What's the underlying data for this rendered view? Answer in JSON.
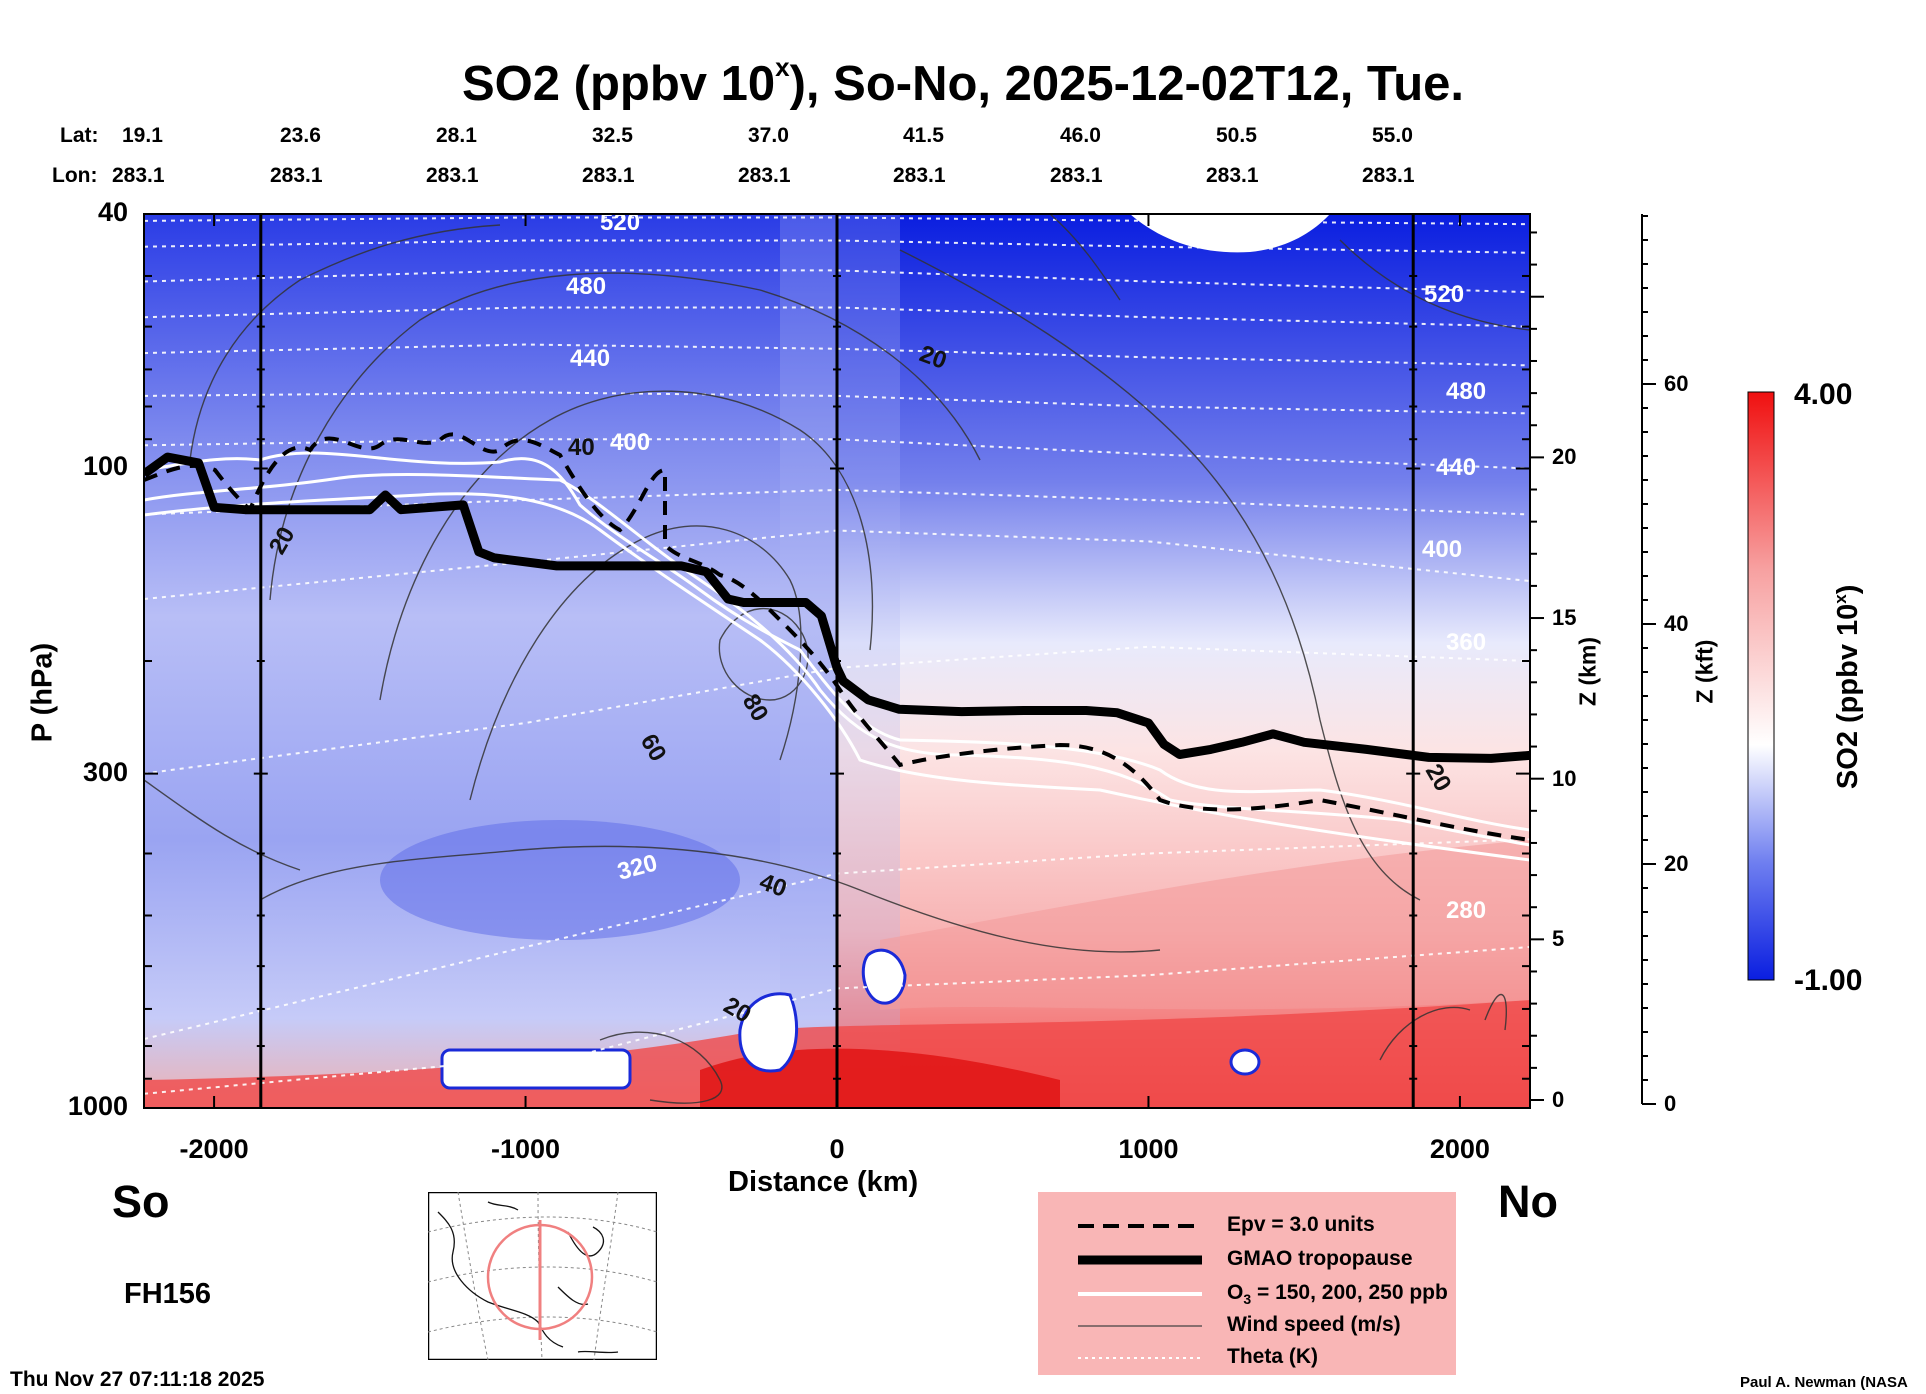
{
  "header": {
    "title_main": "SO2 (ppbv 10",
    "title_sup": "x",
    "title_rest": "), So-No, 2025-12-02T12, Tue.",
    "lat_label": "Lat:",
    "lon_label": "Lon:",
    "lats": [
      "19.1",
      "23.6",
      "28.1",
      "32.5",
      "37.0",
      "41.5",
      "46.0",
      "50.5",
      "55.0"
    ],
    "lons": [
      "283.1",
      "283.1",
      "283.1",
      "283.1",
      "283.1",
      "283.1",
      "283.1",
      "283.1",
      "283.1"
    ]
  },
  "labels": {
    "south": "So",
    "north": "No",
    "forecast_hour": "FH156",
    "timestamp": "Thu Nov 27 07:11:18 2025",
    "credit": "Paul A. Newman (NASA"
  },
  "colors": {
    "low": "#0a1ee0",
    "mid": "#ffffff",
    "high": "#f01010",
    "legend_bg": "#f9b6b6",
    "map_circle": "#f08080"
  },
  "legend": [
    {
      "label": "Epv = 3.0 units",
      "style": "dashed"
    },
    {
      "label": "GMAO tropopause",
      "style": "thick"
    },
    {
      "label_main": "O",
      "label_sub": "3",
      "label_rest": " = 150, 200, 250 ppb",
      "style": "white"
    },
    {
      "label": "Wind speed (m/s)",
      "style": "thin"
    },
    {
      "label": "Theta (K)",
      "style": "dotted"
    }
  ],
  "chart_data": {
    "type": "heatmap",
    "title": "SO2 (ppbv 10x), So-No, 2025-12-02T12, Tue.",
    "xlabel": "Distance (km)",
    "ylabel": "P (hPa)",
    "right_axis_1_label": "Z (km)",
    "right_axis_2_label": "Z (kft)",
    "colorbar_label_main": "SO2 (ppbv 10",
    "colorbar_label_sup": "x",
    "colorbar_label_rest": ")",
    "colorbar_range": [
      -1.0,
      4.0
    ],
    "colorbar_labels": [
      "4.00",
      "-1.00"
    ],
    "xlim": [
      -2225,
      2225
    ],
    "ylim": [
      1000,
      40
    ],
    "y_scale": "log",
    "x_ticks": [
      -2000,
      -1000,
      0,
      1000,
      2000
    ],
    "x_tick_labels": [
      "-2000",
      "-1000",
      "0",
      "1000",
      "2000"
    ],
    "y_ticks": [
      40,
      100,
      300,
      1000
    ],
    "y_tick_labels": [
      "40",
      "100",
      "300",
      "1000"
    ],
    "z_km_ticks": [
      0,
      5,
      10,
      15,
      20
    ],
    "z_km_tick_labels": [
      "0",
      "5",
      "10",
      "15",
      "20"
    ],
    "z_kft_ticks": [
      0,
      20,
      40,
      60
    ],
    "z_kft_tick_labels": [
      "0",
      "20",
      "40",
      "60"
    ],
    "vertical_lines_x": [
      -1850,
      0,
      1850
    ],
    "tropopause": {
      "x": [
        -2225,
        -2150,
        -2050,
        -2000,
        -1900,
        -1800,
        -1600,
        -1500,
        -1450,
        -1400,
        -1200,
        -1150,
        -1100,
        -900,
        -700,
        -500,
        -420,
        -350,
        -300,
        -100,
        -50,
        0,
        20,
        100,
        200,
        400,
        600,
        800,
        900,
        1000,
        1050,
        1100,
        1200,
        1300,
        1400,
        1500,
        1700,
        1900,
        2100,
        2225
      ],
      "p": [
        102,
        96,
        98,
        115,
        116,
        116,
        116,
        116,
        110,
        116,
        114,
        135,
        138,
        142,
        142,
        142,
        145,
        160,
        162,
        162,
        170,
        205,
        215,
        230,
        238,
        240,
        239,
        239,
        241,
        250,
        270,
        280,
        275,
        268,
        260,
        268,
        275,
        283,
        284,
        281
      ]
    },
    "theta_levels": [
      280,
      320,
      360,
      400,
      440,
      480,
      520
    ],
    "theta_labels": [
      "280",
      "320",
      "360",
      "400",
      "440",
      "480",
      "520"
    ],
    "wind_labels": [
      "20",
      "40",
      "60",
      "80",
      "20",
      "40",
      "20",
      "20"
    ]
  }
}
